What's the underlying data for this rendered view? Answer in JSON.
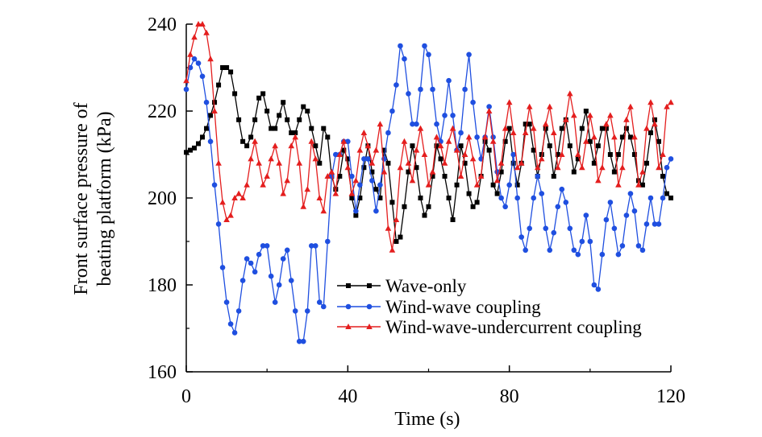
{
  "chart_data": {
    "type": "line",
    "title": "",
    "xlabel": "Time (s)",
    "ylabel_lines": [
      "Front surface pressure of",
      "beating platform (kPa)"
    ],
    "xlim": [
      0,
      120
    ],
    "ylim": [
      160,
      240
    ],
    "xticks": [
      0,
      40,
      80,
      120
    ],
    "yticks": [
      160,
      180,
      200,
      220,
      240
    ],
    "xminor": [
      20,
      60,
      100
    ],
    "yminor": [
      170,
      190,
      210,
      230
    ],
    "grid": false,
    "legend_position": "lower-right",
    "series": [
      {
        "name": "Wave-only",
        "color": "#000000",
        "marker": "square",
        "x": [
          0,
          1,
          2,
          3,
          4,
          5,
          6,
          7,
          8,
          9,
          10,
          11,
          12,
          13,
          14,
          15,
          16,
          17,
          18,
          19,
          20,
          21,
          22,
          23,
          24,
          25,
          26,
          27,
          28,
          29,
          30,
          31,
          32,
          33,
          34,
          35,
          36,
          37,
          38,
          39,
          40,
          41,
          42,
          43,
          44,
          45,
          46,
          47,
          48,
          49,
          50,
          51,
          52,
          53,
          54,
          55,
          56,
          57,
          58,
          59,
          60,
          61,
          62,
          63,
          64,
          65,
          66,
          67,
          68,
          69,
          70,
          71,
          72,
          73,
          74,
          75,
          76,
          77,
          78,
          79,
          80,
          81,
          82,
          83,
          84,
          85,
          86,
          87,
          88,
          89,
          90,
          91,
          92,
          93,
          94,
          95,
          96,
          97,
          98,
          99,
          100,
          101,
          102,
          103,
          104,
          105,
          106,
          107,
          108,
          109,
          110,
          111,
          112,
          113,
          114,
          115,
          116,
          117,
          118,
          119,
          120
        ],
        "y": [
          210.5,
          211,
          211.5,
          212.5,
          214,
          216,
          219,
          222,
          226,
          230,
          230,
          229,
          224,
          218,
          213,
          212,
          214,
          218,
          223,
          224,
          220,
          216,
          216,
          219,
          222,
          218,
          215,
          215,
          218,
          221,
          220,
          216,
          212,
          208,
          216,
          214,
          205,
          202,
          205,
          211,
          209,
          200,
          196,
          200,
          207,
          212,
          206,
          202,
          200,
          211,
          208,
          199,
          190,
          191,
          198,
          206,
          212,
          207,
          200,
          196,
          198,
          205,
          212,
          209,
          205,
          200,
          195,
          203,
          212,
          208,
          201,
          198,
          199,
          205,
          213,
          211,
          203,
          201,
          206,
          213,
          216,
          208,
          203,
          208,
          217,
          217,
          211,
          205,
          210,
          216,
          212,
          205,
          210,
          216,
          218,
          212,
          206,
          209,
          216,
          220,
          213,
          208,
          212,
          216,
          216,
          210,
          206,
          210,
          214,
          216,
          214,
          210,
          204,
          203,
          208,
          215,
          218,
          213,
          205,
          201,
          200
        ]
      },
      {
        "name": "Wind-wave coupling",
        "color": "#1f4fe0",
        "marker": "circle",
        "x": [
          0,
          1,
          2,
          3,
          4,
          5,
          6,
          7,
          8,
          9,
          10,
          11,
          12,
          13,
          14,
          15,
          16,
          17,
          18,
          19,
          20,
          21,
          22,
          23,
          24,
          25,
          26,
          27,
          28,
          29,
          30,
          31,
          32,
          33,
          34,
          35,
          36,
          37,
          38,
          39,
          40,
          41,
          42,
          43,
          44,
          45,
          46,
          47,
          48,
          49,
          50,
          51,
          52,
          53,
          54,
          55,
          56,
          57,
          58,
          59,
          60,
          61,
          62,
          63,
          64,
          65,
          66,
          67,
          68,
          69,
          70,
          71,
          72,
          73,
          74,
          75,
          76,
          77,
          78,
          79,
          80,
          81,
          82,
          83,
          84,
          85,
          86,
          87,
          88,
          89,
          90,
          91,
          92,
          93,
          94,
          95,
          96,
          97,
          98,
          99,
          100,
          101,
          102,
          103,
          104,
          105,
          106,
          107,
          108,
          109,
          110,
          111,
          112,
          113,
          114,
          115,
          116,
          117,
          118,
          119,
          120
        ],
        "y": [
          225,
          230,
          232,
          231,
          228,
          222,
          213,
          203,
          194,
          184,
          176,
          171,
          169,
          174,
          181,
          186,
          185,
          183,
          187,
          189,
          189,
          182,
          176,
          180,
          186,
          188,
          181,
          174,
          167,
          167,
          174,
          189,
          189,
          176,
          175,
          190,
          205,
          210,
          210,
          213,
          213,
          205,
          197,
          203,
          209,
          209,
          204,
          197,
          203,
          209,
          215,
          220,
          226,
          235,
          232,
          224,
          217,
          217,
          225,
          235,
          233,
          225,
          217,
          213,
          219,
          227,
          219,
          211,
          215,
          225,
          233,
          222,
          214,
          209,
          214,
          221,
          214,
          206,
          200,
          198,
          203,
          210,
          200,
          191,
          188,
          193,
          200,
          205,
          201,
          193,
          188,
          192,
          198,
          202,
          199,
          193,
          188,
          187,
          190,
          196,
          190,
          180,
          179,
          187,
          195,
          199,
          193,
          187,
          189,
          196,
          201,
          197,
          189,
          188,
          194,
          200,
          194,
          194,
          200,
          207,
          209
        ]
      },
      {
        "name": "Wind-wave-undercurrent coupling",
        "color": "#e41e1e",
        "marker": "triangle",
        "x": [
          0,
          1,
          2,
          3,
          4,
          5,
          6,
          7,
          8,
          9,
          10,
          11,
          12,
          13,
          14,
          15,
          16,
          17,
          18,
          19,
          20,
          21,
          22,
          23,
          24,
          25,
          26,
          27,
          28,
          29,
          30,
          31,
          32,
          33,
          34,
          35,
          36,
          37,
          38,
          39,
          40,
          41,
          42,
          43,
          44,
          45,
          46,
          47,
          48,
          49,
          50,
          51,
          52,
          53,
          54,
          55,
          56,
          57,
          58,
          59,
          60,
          61,
          62,
          63,
          64,
          65,
          66,
          67,
          68,
          69,
          70,
          71,
          72,
          73,
          74,
          75,
          76,
          77,
          78,
          79,
          80,
          81,
          82,
          83,
          84,
          85,
          86,
          87,
          88,
          89,
          90,
          91,
          92,
          93,
          94,
          95,
          96,
          97,
          98,
          99,
          100,
          101,
          102,
          103,
          104,
          105,
          106,
          107,
          108,
          109,
          110,
          111,
          112,
          113,
          114,
          115,
          116,
          117,
          118,
          119,
          120
        ],
        "y": [
          227,
          233,
          237,
          240,
          240,
          238,
          232,
          220,
          208,
          199,
          195,
          196,
          200,
          201,
          200,
          203,
          209,
          213,
          208,
          203,
          205,
          209,
          212,
          208,
          201,
          204,
          212,
          214,
          208,
          198,
          202,
          213,
          209,
          200,
          197,
          205,
          206,
          201,
          210,
          213,
          207,
          201,
          204,
          211,
          215,
          212,
          208,
          211,
          217,
          206,
          193,
          188,
          195,
          207,
          213,
          208,
          204,
          211,
          216,
          210,
          203,
          206,
          214,
          212,
          208,
          213,
          216,
          211,
          205,
          210,
          214,
          209,
          203,
          205,
          214,
          220,
          213,
          204,
          208,
          216,
          222,
          215,
          207,
          208,
          215,
          221,
          216,
          207,
          209,
          217,
          221,
          215,
          207,
          210,
          218,
          224,
          219,
          210,
          207,
          213,
          219,
          214,
          204,
          207,
          217,
          219,
          214,
          203,
          207,
          218,
          221,
          214,
          203,
          206,
          216,
          222,
          217,
          207,
          210,
          221,
          222
        ]
      }
    ]
  }
}
